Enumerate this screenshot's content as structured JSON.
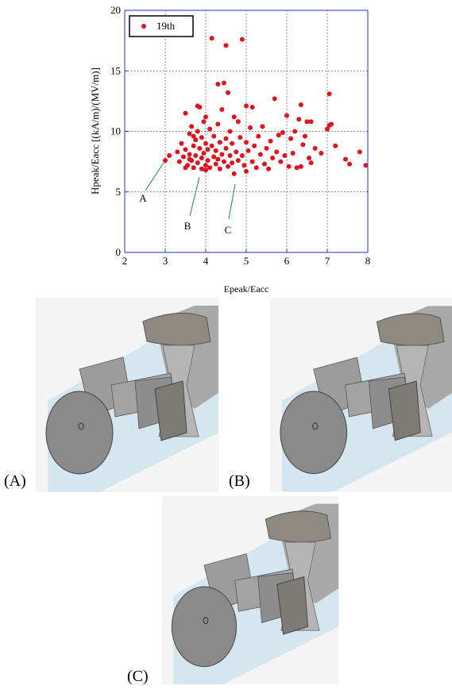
{
  "chart_data": {
    "type": "scatter",
    "x_label": "Epeak/Eacc",
    "y_label": "Hpeak/Eacc [(kA/m)/(MV/m)]",
    "xlim": [
      2,
      8
    ],
    "xticks": [
      2,
      3,
      4,
      5,
      6,
      7,
      8
    ],
    "ylim": [
      0,
      20
    ],
    "yticks": [
      0,
      5,
      10,
      15,
      20
    ],
    "grid": true,
    "legend": "upper left",
    "annotations": [
      "A",
      "B",
      "C"
    ],
    "series": [
      {
        "name": "19th",
        "color": "#e0121b",
        "x": [
          3.0,
          3.1,
          3.3,
          3.35,
          3.4,
          3.45,
          3.5,
          3.5,
          3.55,
          3.6,
          3.6,
          3.65,
          3.65,
          3.7,
          3.7,
          3.75,
          3.75,
          3.8,
          3.8,
          3.8,
          3.85,
          3.85,
          3.9,
          3.9,
          3.9,
          3.95,
          3.95,
          4.0,
          4.0,
          4.0,
          4.0,
          4.05,
          4.05,
          4.1,
          4.1,
          4.15,
          4.15,
          4.2,
          4.2,
          4.25,
          4.25,
          4.3,
          4.3,
          4.3,
          4.35,
          4.35,
          4.4,
          4.4,
          4.45,
          4.45,
          4.5,
          4.5,
          4.5,
          4.55,
          4.55,
          4.6,
          4.6,
          4.65,
          4.65,
          4.7,
          4.7,
          4.75,
          4.8,
          4.8,
          4.85,
          4.9,
          4.9,
          4.95,
          5.0,
          5.0,
          5.0,
          5.05,
          5.1,
          5.15,
          5.15,
          5.2,
          5.25,
          5.3,
          5.35,
          5.4,
          5.45,
          5.5,
          5.55,
          5.6,
          5.65,
          5.7,
          5.75,
          5.8,
          5.85,
          5.9,
          5.95,
          6.0,
          6.05,
          6.1,
          6.15,
          6.2,
          6.25,
          6.3,
          6.35,
          6.35,
          6.4,
          6.45,
          6.5,
          6.55,
          6.6,
          6.6,
          6.7,
          6.85,
          7.0,
          7.05,
          7.05,
          7.1,
          7.2,
          7.45,
          7.55,
          7.8,
          7.95,
          3.5,
          3.6,
          3.7
        ],
        "values": [
          7.6,
          8.0,
          8.3,
          7.5,
          9.0,
          7.9,
          11.5,
          8.5,
          7.2,
          9.8,
          8.1,
          7.6,
          10.4,
          8.8,
          7.0,
          9.3,
          8.0,
          12.1,
          7.4,
          10.0,
          8.6,
          12.0,
          6.9,
          9.5,
          7.8,
          8.2,
          10.8,
          11.2,
          7.2,
          9.0,
          6.8,
          8.5,
          7.6,
          10.2,
          7.0,
          17.7,
          8.8,
          7.9,
          9.6,
          7.3,
          8.4,
          13.9,
          10.6,
          7.7,
          9.1,
          6.9,
          8.1,
          11.8,
          14.0,
          7.5,
          17.1,
          9.4,
          8.6,
          13.2,
          7.1,
          10.0,
          8.0,
          9.0,
          7.4,
          6.5,
          11.2,
          8.3,
          7.6,
          10.8,
          9.5,
          17.6,
          8.0,
          7.2,
          12.1,
          6.7,
          9.1,
          8.4,
          10.3,
          12.0,
          7.5,
          8.8,
          7.0,
          9.6,
          8.1,
          10.4,
          7.3,
          8.6,
          6.9,
          9.2,
          7.8,
          12.7,
          8.3,
          9.7,
          7.5,
          9.9,
          8.0,
          11.3,
          7.1,
          9.4,
          8.2,
          10.0,
          7.0,
          11.0,
          12.2,
          7.1,
          8.9,
          9.6,
          10.8,
          7.8,
          10.8,
          7.4,
          8.6,
          8.2,
          10.2,
          10.5,
          13.1,
          10.6,
          8.8,
          7.7,
          7.3,
          8.3,
          7.2,
          7.0,
          7.7,
          9.6
        ]
      }
    ]
  },
  "panels": [
    "(A)",
    "(B)",
    "(C)"
  ]
}
